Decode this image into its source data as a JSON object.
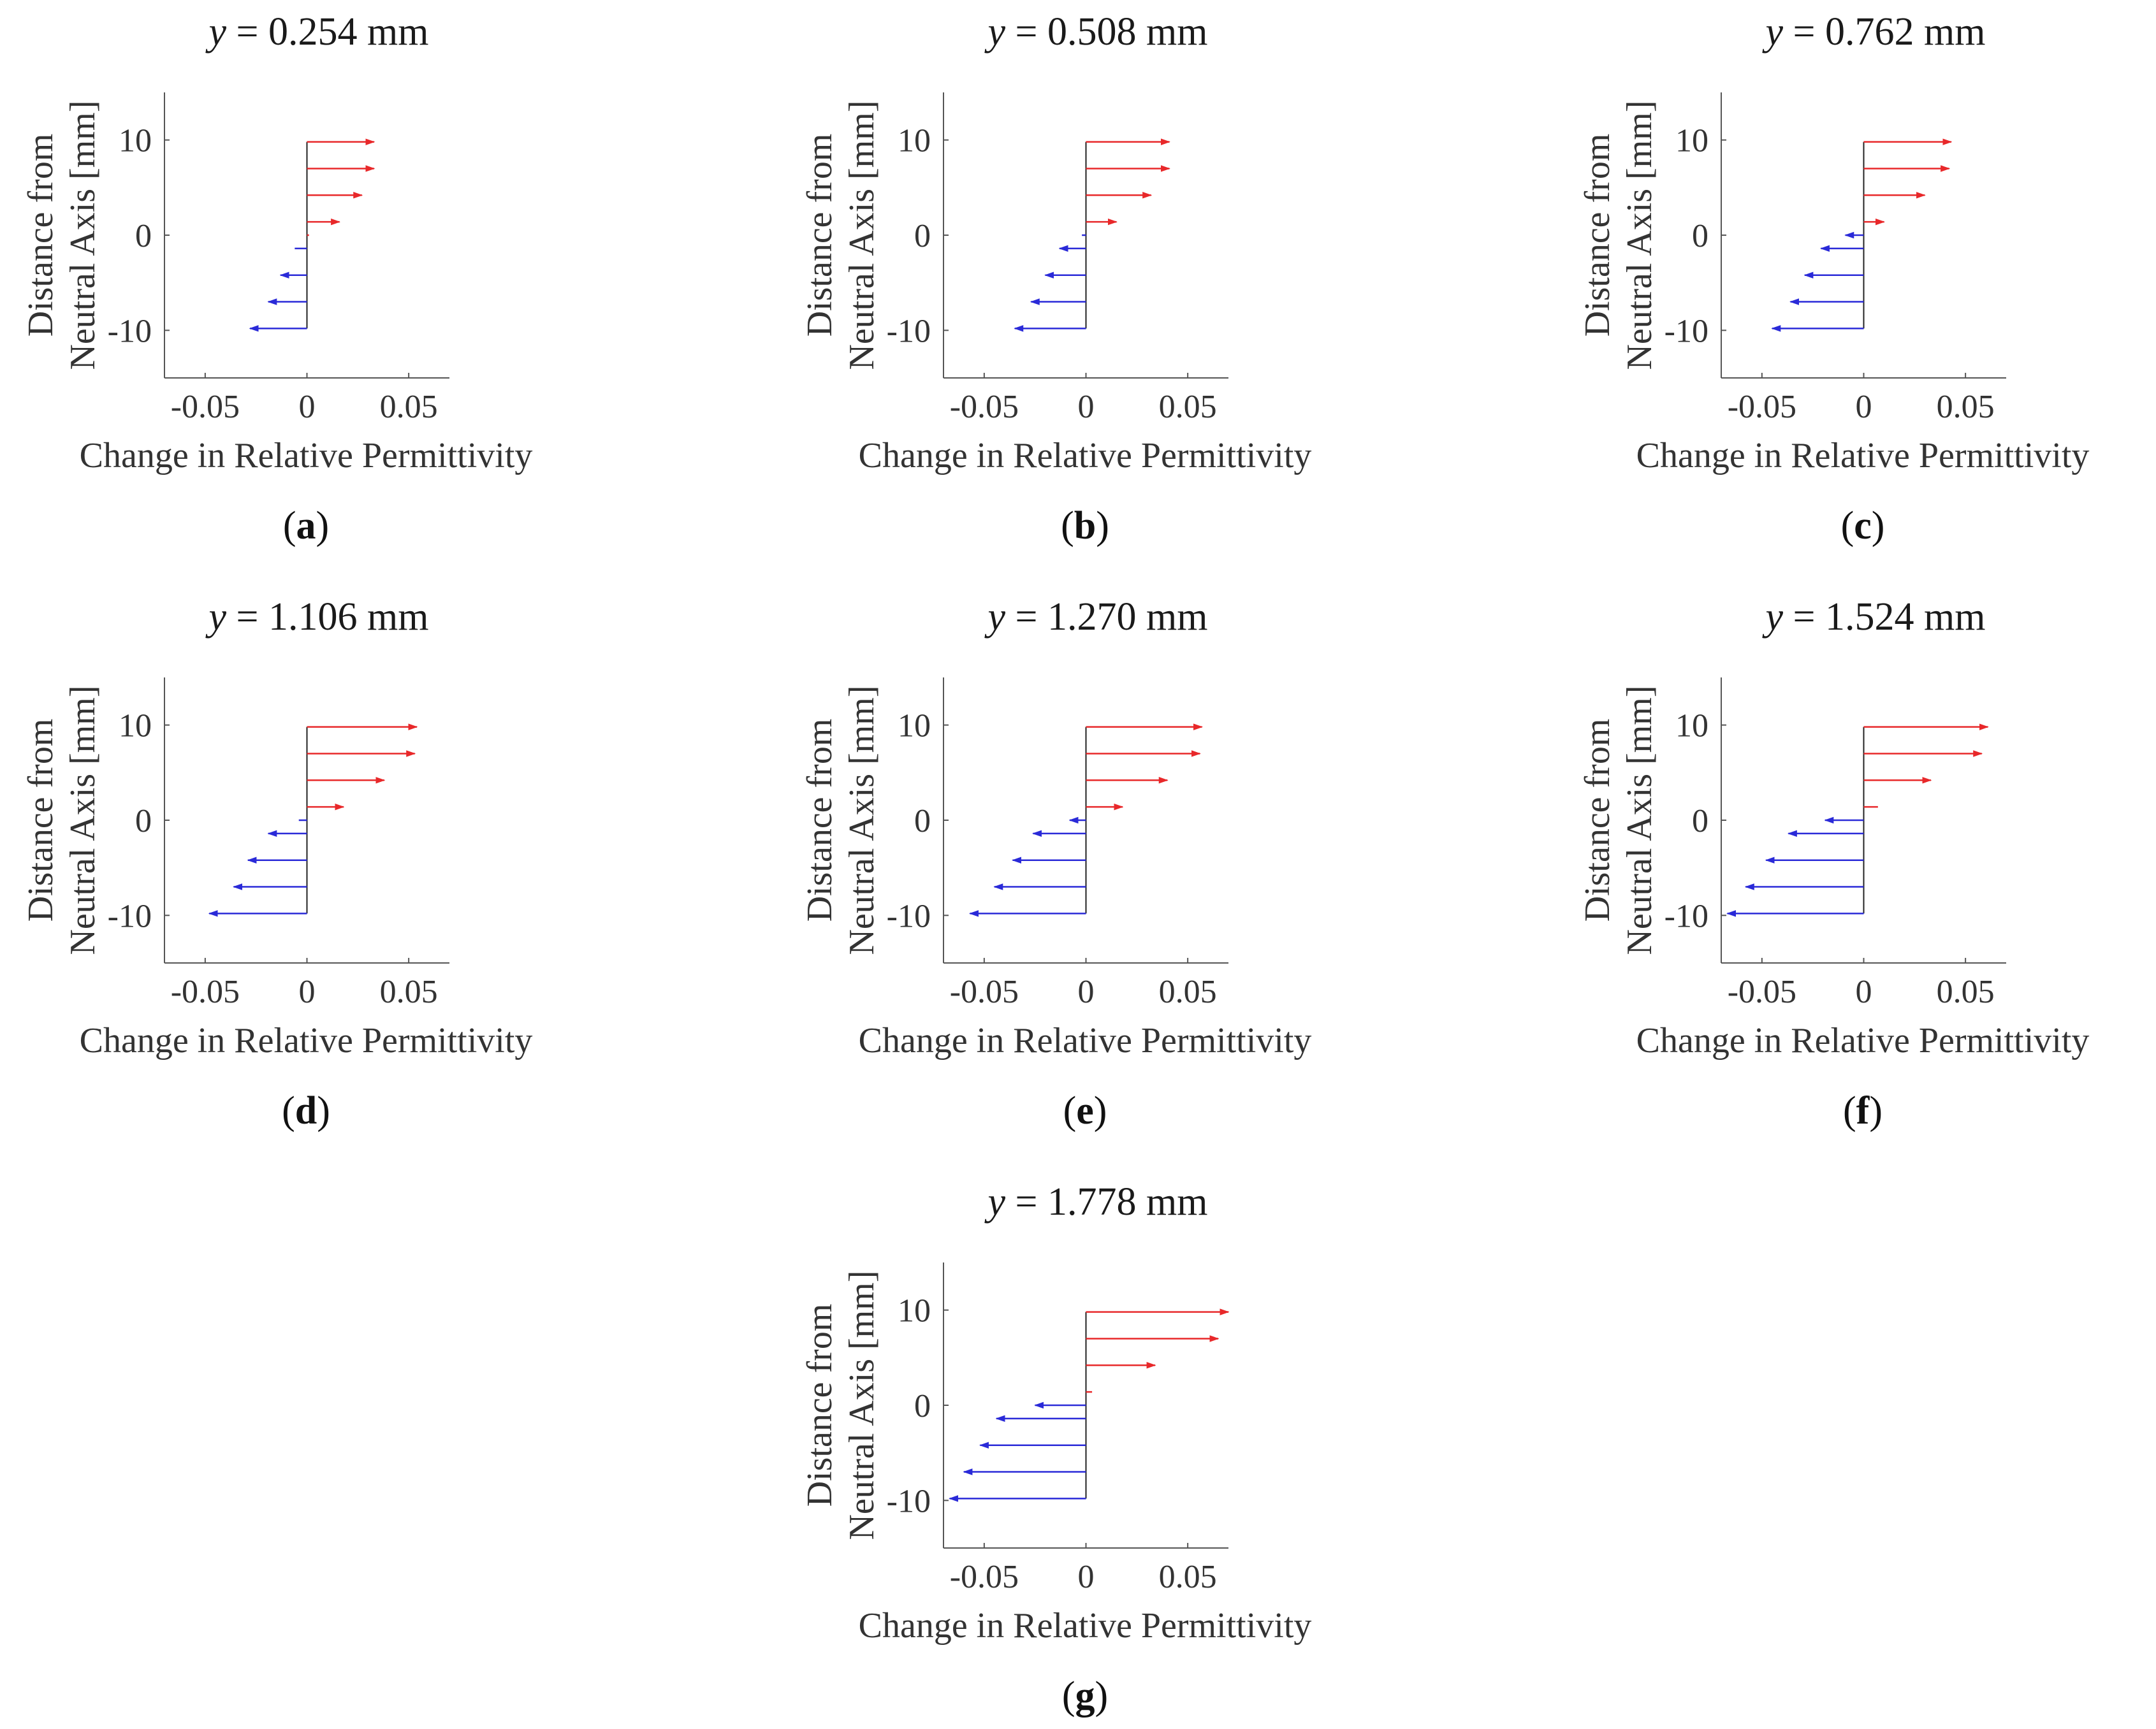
{
  "figure": {
    "xlabel": "Change in Relative Permittivity",
    "ylabel_line1": "Distance from",
    "ylabel_line2": "Neutral Axis [mm]",
    "title_var": "y",
    "title_eq": " = ",
    "title_unit": " mm"
  },
  "colors": {
    "positive": "#e8282a",
    "negative": "#2a2ad8",
    "axis": "#555555",
    "baseline": "#222222"
  },
  "chart_data": [
    {
      "type": "bar",
      "panel": "a",
      "caption": "a",
      "title_value": "0.254",
      "xlim": [
        -0.07,
        0.07
      ],
      "ylim": [
        -15,
        15
      ],
      "xticks": [
        -0.05,
        0,
        0.05
      ],
      "xtick_labels": [
        "-0.05",
        "0",
        "0.05"
      ],
      "yticks": [
        10,
        0,
        -10
      ],
      "ytick_labels": [
        "10",
        "0",
        "-10"
      ],
      "y": [
        9.8,
        7,
        4.2,
        1.4,
        0,
        -1.4,
        -4.2,
        -7,
        -9.8
      ],
      "values": [
        0.033,
        0.033,
        0.027,
        0.016,
        0.001,
        -0.006,
        -0.013,
        -0.019,
        -0.028
      ]
    },
    {
      "type": "bar",
      "panel": "b",
      "caption": "b",
      "title_value": "0.508",
      "xlim": [
        -0.07,
        0.07
      ],
      "ylim": [
        -15,
        15
      ],
      "xticks": [
        -0.05,
        0,
        0.05
      ],
      "xtick_labels": [
        "-0.05",
        "0",
        "0.05"
      ],
      "yticks": [
        10,
        0,
        -10
      ],
      "ytick_labels": [
        "10",
        "0",
        "-10"
      ],
      "y": [
        9.8,
        7,
        4.2,
        1.4,
        0,
        -1.4,
        -4.2,
        -7,
        -9.8
      ],
      "values": [
        0.041,
        0.041,
        0.032,
        0.015,
        -0.002,
        -0.013,
        -0.02,
        -0.027,
        -0.035
      ]
    },
    {
      "type": "bar",
      "panel": "c",
      "caption": "c",
      "title_value": "0.762",
      "xlim": [
        -0.07,
        0.07
      ],
      "ylim": [
        -15,
        15
      ],
      "xticks": [
        -0.05,
        0,
        0.05
      ],
      "xtick_labels": [
        "-0.05",
        "0",
        "0.05"
      ],
      "yticks": [
        10,
        0,
        -10
      ],
      "ytick_labels": [
        "10",
        "0",
        "-10"
      ],
      "y": [
        9.8,
        7,
        4.2,
        1.4,
        0,
        -1.4,
        -4.2,
        -7,
        -9.8
      ],
      "values": [
        0.043,
        0.042,
        0.03,
        0.01,
        -0.009,
        -0.021,
        -0.029,
        -0.036,
        -0.045
      ]
    },
    {
      "type": "bar",
      "panel": "d",
      "caption": "d",
      "title_value": "1.106",
      "xlim": [
        -0.07,
        0.07
      ],
      "ylim": [
        -15,
        15
      ],
      "xticks": [
        -0.05,
        0,
        0.05
      ],
      "xtick_labels": [
        "-0.05",
        "0",
        "0.05"
      ],
      "yticks": [
        10,
        0,
        -10
      ],
      "ytick_labels": [
        "10",
        "0",
        "-10"
      ],
      "y": [
        9.8,
        7,
        4.2,
        1.4,
        0,
        -1.4,
        -4.2,
        -7,
        -9.8
      ],
      "values": [
        0.054,
        0.053,
        0.038,
        0.018,
        -0.004,
        -0.019,
        -0.029,
        -0.036,
        -0.048
      ]
    },
    {
      "type": "bar",
      "panel": "e",
      "caption": "e",
      "title_value": "1.270",
      "xlim": [
        -0.07,
        0.07
      ],
      "ylim": [
        -15,
        15
      ],
      "xticks": [
        -0.05,
        0,
        0.05
      ],
      "xtick_labels": [
        "-0.05",
        "0",
        "0.05"
      ],
      "yticks": [
        10,
        0,
        -10
      ],
      "ytick_labels": [
        "10",
        "0",
        "-10"
      ],
      "y": [
        9.8,
        7,
        4.2,
        1.4,
        0,
        -1.4,
        -4.2,
        -7,
        -9.8
      ],
      "values": [
        0.057,
        0.056,
        0.04,
        0.018,
        -0.008,
        -0.026,
        -0.036,
        -0.045,
        -0.057
      ]
    },
    {
      "type": "bar",
      "panel": "f",
      "caption": "f",
      "title_value": "1.524",
      "xlim": [
        -0.07,
        0.07
      ],
      "ylim": [
        -15,
        15
      ],
      "xticks": [
        -0.05,
        0,
        0.05
      ],
      "xtick_labels": [
        "-0.05",
        "0",
        "0.05"
      ],
      "yticks": [
        10,
        0,
        -10
      ],
      "ytick_labels": [
        "10",
        "0",
        "-10"
      ],
      "y": [
        9.8,
        7,
        4.2,
        1.4,
        0,
        -1.4,
        -4.2,
        -7,
        -9.8
      ],
      "values": [
        0.061,
        0.058,
        0.033,
        0.007,
        -0.019,
        -0.037,
        -0.048,
        -0.058,
        -0.067
      ]
    },
    {
      "type": "bar",
      "panel": "g",
      "caption": "g",
      "title_value": "1.778",
      "xlim": [
        -0.07,
        0.07
      ],
      "ylim": [
        -15,
        15
      ],
      "xticks": [
        -0.05,
        0,
        0.05
      ],
      "xtick_labels": [
        "-0.05",
        "0",
        "0.05"
      ],
      "yticks": [
        10,
        0,
        -10
      ],
      "ytick_labels": [
        "10",
        "0",
        "-10"
      ],
      "y": [
        9.8,
        7,
        4.2,
        1.4,
        0,
        -1.4,
        -4.2,
        -7,
        -9.8
      ],
      "values": [
        0.07,
        0.065,
        0.034,
        0.003,
        -0.025,
        -0.044,
        -0.052,
        -0.06,
        -0.067
      ]
    }
  ]
}
